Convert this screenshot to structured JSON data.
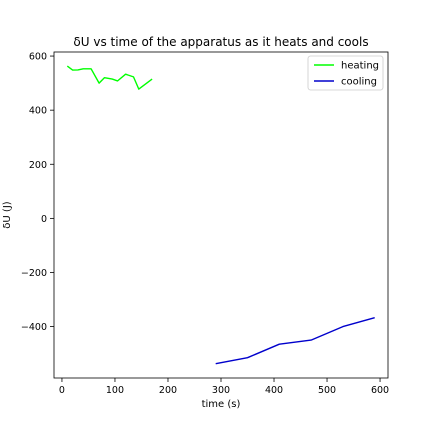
{
  "chart_data": {
    "type": "line",
    "title": "δU vs time of the apparatus as it heats and cools",
    "xlabel": "time (s)",
    "ylabel": "δU (J)",
    "xlim": [
      -15,
      615
    ],
    "ylim": [
      -590,
      615
    ],
    "xticks": [
      0,
      100,
      200,
      300,
      400,
      500,
      600
    ],
    "yticks": [
      -400,
      -200,
      0,
      200,
      400,
      600
    ],
    "ytick_labels": [
      "−400",
      "−200",
      "0",
      "200",
      "400",
      "600"
    ],
    "grid": false,
    "legend_position": "top-right",
    "series": [
      {
        "name": "heating",
        "color": "#00ff00",
        "x": [
          10,
          20,
          30,
          40,
          55,
          70,
          80,
          95,
          105,
          120,
          135,
          145,
          160,
          170
        ],
        "y": [
          563,
          548,
          549,
          553,
          553,
          500,
          520,
          515,
          508,
          533,
          523,
          478,
          500,
          515
        ]
      },
      {
        "name": "cooling",
        "color": "#0000cc",
        "x": [
          290,
          350,
          410,
          470,
          530,
          590
        ],
        "y": [
          -537,
          -515,
          -465,
          -450,
          -400,
          -367
        ]
      }
    ]
  }
}
